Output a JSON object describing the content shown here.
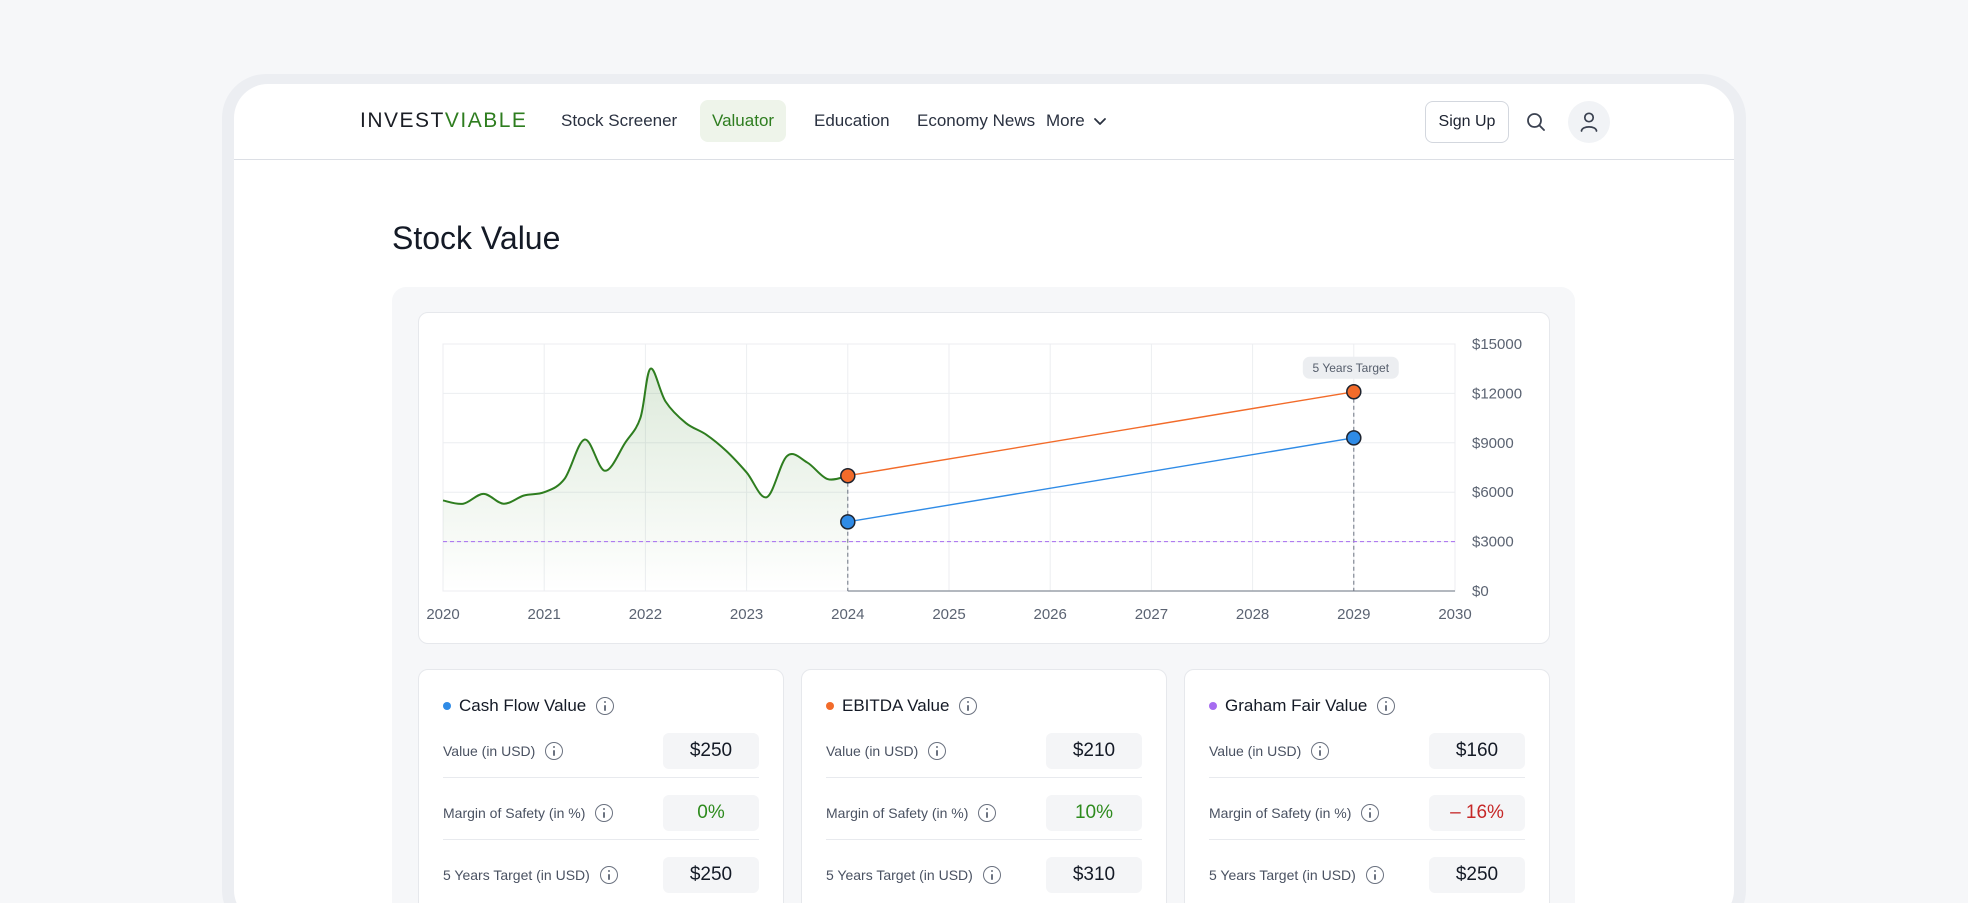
{
  "brand": {
    "part1": "INVEST",
    "part2": "VIABLE"
  },
  "nav": {
    "items": [
      {
        "label": "Stock Screener",
        "active": false
      },
      {
        "label": "Valuator",
        "active": true
      },
      {
        "label": "Education",
        "active": false
      },
      {
        "label": "Economy News",
        "active": false
      },
      {
        "label": "More",
        "active": false
      }
    ],
    "signup_label": "Sign Up"
  },
  "page": {
    "title": "Stock Value"
  },
  "colors": {
    "brand_green": "#2e7d1f",
    "price_line": "#2e7d1f",
    "ebitda": "#f26b2a",
    "cash_flow": "#2f8be6",
    "graham": "#a66cf0",
    "positive": "#2e8b1e",
    "negative": "#c62828"
  },
  "chart_data": {
    "type": "line",
    "x_ticks": [
      "2020",
      "2021",
      "2022",
      "2023",
      "2024",
      "2025",
      "2026",
      "2027",
      "2028",
      "2029",
      "2030"
    ],
    "y_ticks": [
      "$15000",
      "$12000",
      "$9000",
      "$6000",
      "$3000",
      "$0"
    ],
    "ylim": [
      0,
      15000
    ],
    "xlim": [
      2020,
      2030
    ],
    "grid": true,
    "annotation": "5 Years Target",
    "series": [
      {
        "x": [
          2020.0,
          2020.2,
          2020.4,
          2020.6,
          2020.8,
          2021.0,
          2021.2,
          2021.4,
          2021.6,
          2021.8,
          2021.95,
          2022.05,
          2022.2,
          2022.4,
          2022.6,
          2022.8,
          2023.0,
          2023.2,
          2023.4,
          2023.6,
          2023.8,
          2024.0
        ],
        "y": [
          5500,
          5300,
          5900,
          5300,
          5800,
          6000,
          6800,
          9200,
          7300,
          9000,
          10500,
          13500,
          11500,
          10200,
          9500,
          8500,
          7200,
          5700,
          8200,
          7800,
          6800,
          7000
        ]
      },
      {
        "x": [
          2024,
          2029
        ],
        "y": [
          7000,
          12100
        ]
      },
      {
        "x": [
          2024,
          2029
        ],
        "y": [
          4200,
          9300
        ]
      },
      {
        "x": [
          2020,
          2030
        ],
        "y": [
          3000,
          3000
        ]
      }
    ]
  },
  "cards": [
    {
      "title": "Cash Flow Value",
      "rows": [
        {
          "label": "Value (in USD)",
          "value": "$250"
        },
        {
          "label": "Margin of Safety (in %)",
          "value": "0%"
        },
        {
          "label": "5 Years Target (in USD)",
          "value": "$250"
        }
      ]
    },
    {
      "title": "EBITDA Value",
      "rows": [
        {
          "label": "Value (in USD)",
          "value": "$210"
        },
        {
          "label": "Margin of Safety (in %)",
          "value": "10%"
        },
        {
          "label": "5 Years Target (in USD)",
          "value": "$310"
        }
      ]
    },
    {
      "title": "Graham Fair Value",
      "rows": [
        {
          "label": "Value (in USD)",
          "value": "$160"
        },
        {
          "label": "Margin of Safety (in %)",
          "value": "– 16%"
        },
        {
          "label": "5 Years Target (in USD)",
          "value": "$250"
        }
      ]
    }
  ]
}
